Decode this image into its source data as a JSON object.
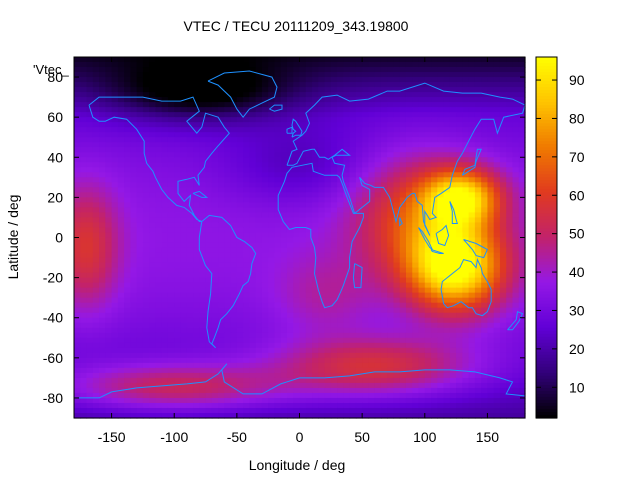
{
  "chart_data": {
    "type": "heatmap",
    "title": "VTEC / TECU 20111209_343.19800",
    "xlabel": "Longitude / deg",
    "ylabel": "Latitude / deg",
    "series_label": "'Vtec_",
    "xlim": [
      -180,
      180
    ],
    "ylim": [
      -90,
      90
    ],
    "xticks": [
      -150,
      -100,
      -50,
      0,
      50,
      100,
      150
    ],
    "yticks": [
      -80,
      -60,
      -40,
      -20,
      0,
      20,
      40,
      60,
      80
    ],
    "colorbar": {
      "range": [
        2,
        96
      ],
      "ticks": [
        10,
        20,
        30,
        40,
        50,
        60,
        70,
        80,
        90
      ]
    },
    "colormap": [
      "#000000",
      "#32007a",
      "#6100d6",
      "#9418e6",
      "#c2226b",
      "#e03a1f",
      "#ef7a00",
      "#ffc400",
      "#ffff00"
    ],
    "coastline_color": "#1e90ff",
    "grid": false,
    "vtec_features": [
      {
        "lon": 125,
        "lat": -15,
        "amp": 60,
        "lon_sigma": 38,
        "lat_sigma": 22
      },
      {
        "lon": 130,
        "lat": 20,
        "amp": 48,
        "lon_sigma": 30,
        "lat_sigma": 14
      },
      {
        "lon": 95,
        "lat": 10,
        "amp": 28,
        "lon_sigma": 50,
        "lat_sigma": 30
      },
      {
        "lon": 60,
        "lat": -65,
        "amp": 30,
        "lon_sigma": 80,
        "lat_sigma": 15
      },
      {
        "lon": -100,
        "lat": -75,
        "amp": 28,
        "lon_sigma": 90,
        "lat_sigma": 12
      },
      {
        "lon": -170,
        "lat": -5,
        "amp": 22,
        "lon_sigma": 25,
        "lat_sigma": 30
      },
      {
        "lon": 20,
        "lat": -30,
        "amp": 10,
        "lon_sigma": 40,
        "lat_sigma": 20
      },
      {
        "lon": -80,
        "lat": 72,
        "amp": -22,
        "lon_sigma": 70,
        "lat_sigma": 15
      },
      {
        "lon": 0,
        "lat": 35,
        "amp": -10,
        "lon_sigma": 60,
        "lat_sigma": 20
      }
    ]
  }
}
